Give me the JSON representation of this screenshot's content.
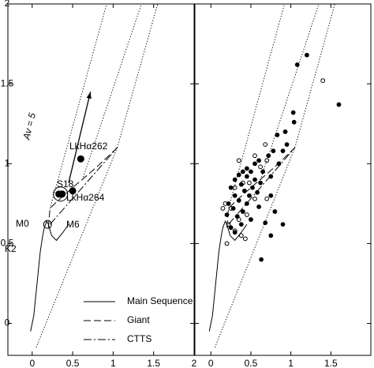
{
  "chart_data": [
    {
      "type": "scatter",
      "xlim": [
        -0.3,
        2
      ],
      "ylim": [
        -0.2,
        2
      ],
      "xticks": [
        0,
        0.5,
        1,
        1.5,
        2
      ],
      "yticks": [
        0,
        0.5,
        1,
        1.5,
        2
      ],
      "show_ytick_labels": true,
      "legend": "lower right",
      "series": [
        {
          "name": "Main Sequence",
          "style": "solid",
          "x": [
            -0.02,
            0.02,
            0.06,
            0.1,
            0.13,
            0.15,
            0.18,
            0.2,
            0.24,
            0.3,
            0.38,
            0.45
          ],
          "y": [
            -0.05,
            0.05,
            0.25,
            0.45,
            0.55,
            0.6,
            0.64,
            0.62,
            0.55,
            0.52,
            0.57,
            0.62
          ]
        },
        {
          "name": "Giant",
          "style": "dashed",
          "x": [
            0.2,
            0.22,
            0.3,
            0.5,
            0.8,
            1.05
          ],
          "y": [
            0.6,
            0.72,
            0.76,
            0.85,
            0.98,
            1.1
          ]
        },
        {
          "name": "CTTS",
          "style": "dashdot",
          "x": [
            0.22,
            1.05
          ],
          "y": [
            0.62,
            1.1
          ]
        },
        {
          "style": "dotted",
          "x": [
            0.22,
            0.92
          ],
          "y": [
            0.72,
            2
          ]
        },
        {
          "style": "dotted",
          "x": [
            0.62,
            1.35
          ],
          "y": [
            0.9,
            2
          ]
        },
        {
          "style": "dotted",
          "x": [
            1.05,
            1.55
          ],
          "y": [
            1.1,
            2
          ]
        },
        {
          "style": "dotted",
          "x": [
            0.05,
            1.05
          ],
          "y": [
            -0.15,
            1.1
          ]
        },
        {
          "style": "filled",
          "x": [
            0.6,
            0.5,
            0.33,
            0.37
          ],
          "y": [
            1.03,
            0.83,
            0.81,
            0.81
          ]
        },
        {
          "style": "open",
          "x": [
            0.19
          ],
          "y": [
            0.62
          ]
        },
        {
          "style": "ring",
          "x": [
            0.35
          ],
          "y": [
            0.81
          ]
        }
      ],
      "annotations": [
        "LkHα262",
        "S18",
        "LkHα264",
        "M0",
        "M6",
        "K2"
      ],
      "arrow": {
        "label": "Av = 5",
        "x": [
          0.45,
          0.72
        ],
        "y": [
          0.88,
          1.45
        ]
      }
    },
    {
      "type": "scatter",
      "xlim": [
        -0.2,
        2
      ],
      "ylim": [
        -0.2,
        2
      ],
      "xticks": [
        0,
        0.5,
        1,
        1.5
      ],
      "yticks": [
        0,
        0.5,
        1,
        1.5,
        2
      ],
      "show_ytick_labels": false,
      "series": [
        {
          "style": "solid",
          "x": [
            -0.02,
            0.02,
            0.06,
            0.1,
            0.13,
            0.15,
            0.18,
            0.2,
            0.24,
            0.3,
            0.38,
            0.45
          ],
          "y": [
            -0.05,
            0.05,
            0.25,
            0.45,
            0.55,
            0.6,
            0.64,
            0.62,
            0.55,
            0.52,
            0.57,
            0.62
          ]
        },
        {
          "style": "dashed",
          "x": [
            0.2,
            0.22,
            0.3,
            0.5,
            0.8,
            1.05
          ],
          "y": [
            0.6,
            0.72,
            0.76,
            0.85,
            0.98,
            1.1
          ]
        },
        {
          "style": "dashdot",
          "x": [
            0.22,
            1.05
          ],
          "y": [
            0.62,
            1.1
          ]
        },
        {
          "style": "dotted",
          "x": [
            0.22,
            0.92
          ],
          "y": [
            0.72,
            2
          ]
        },
        {
          "style": "dotted",
          "x": [
            0.62,
            1.35
          ],
          "y": [
            0.9,
            2
          ]
        },
        {
          "style": "dotted",
          "x": [
            1.05,
            1.55
          ],
          "y": [
            1.1,
            2
          ]
        },
        {
          "style": "dotted",
          "x": [
            0.05,
            1.05
          ],
          "y": [
            -0.15,
            1.1
          ]
        },
        {
          "style": "filled",
          "x": [
            1.2,
            1.08,
            1.6,
            1.03,
            1.04,
            0.83,
            0.93,
            0.95,
            0.78,
            0.9,
            0.72,
            0.6,
            0.55,
            0.45,
            0.5,
            0.4,
            0.35,
            0.45,
            0.55,
            0.3,
            0.62,
            0.38,
            0.52,
            0.25,
            0.42,
            0.58,
            0.3,
            0.48,
            0.35,
            0.22,
            0.45,
            0.6,
            0.28,
            0.4,
            0.2,
            0.33,
            0.5,
            0.75,
            0.8,
            0.68,
            0.75,
            0.9,
            0.63,
            0.38,
            0.25,
            0.3,
            0.85,
            0.65,
            0.75
          ],
          "y": [
            1.68,
            1.62,
            1.37,
            1.32,
            1.26,
            1.18,
            1.2,
            1.12,
            1.08,
            1.08,
            1.05,
            1.02,
            1.0,
            0.97,
            0.95,
            0.95,
            0.93,
            0.92,
            0.9,
            0.9,
            0.88,
            0.87,
            0.85,
            0.85,
            0.83,
            0.82,
            0.8,
            0.8,
            0.77,
            0.75,
            0.75,
            0.73,
            0.72,
            0.7,
            0.68,
            0.67,
            0.65,
            0.8,
            0.7,
            0.63,
            0.55,
            0.62,
            0.4,
            0.62,
            0.6,
            0.57,
            1.0,
            0.95,
            0.92
          ]
        },
        {
          "style": "open",
          "x": [
            1.4,
            0.68,
            0.55,
            0.7,
            0.35,
            0.62,
            0.4,
            0.48,
            0.3,
            0.55,
            0.7,
            0.18,
            0.25,
            0.45,
            0.35,
            0.22,
            0.3,
            0.38,
            0.2,
            0.43,
            0.15
          ],
          "y": [
            1.52,
            1.12,
            1.05,
            1.02,
            1.02,
            0.98,
            0.88,
            0.88,
            0.85,
            0.78,
            0.78,
            0.75,
            0.72,
            0.68,
            0.65,
            0.62,
            0.58,
            0.55,
            0.5,
            0.53,
            0.72
          ]
        }
      ]
    }
  ]
}
